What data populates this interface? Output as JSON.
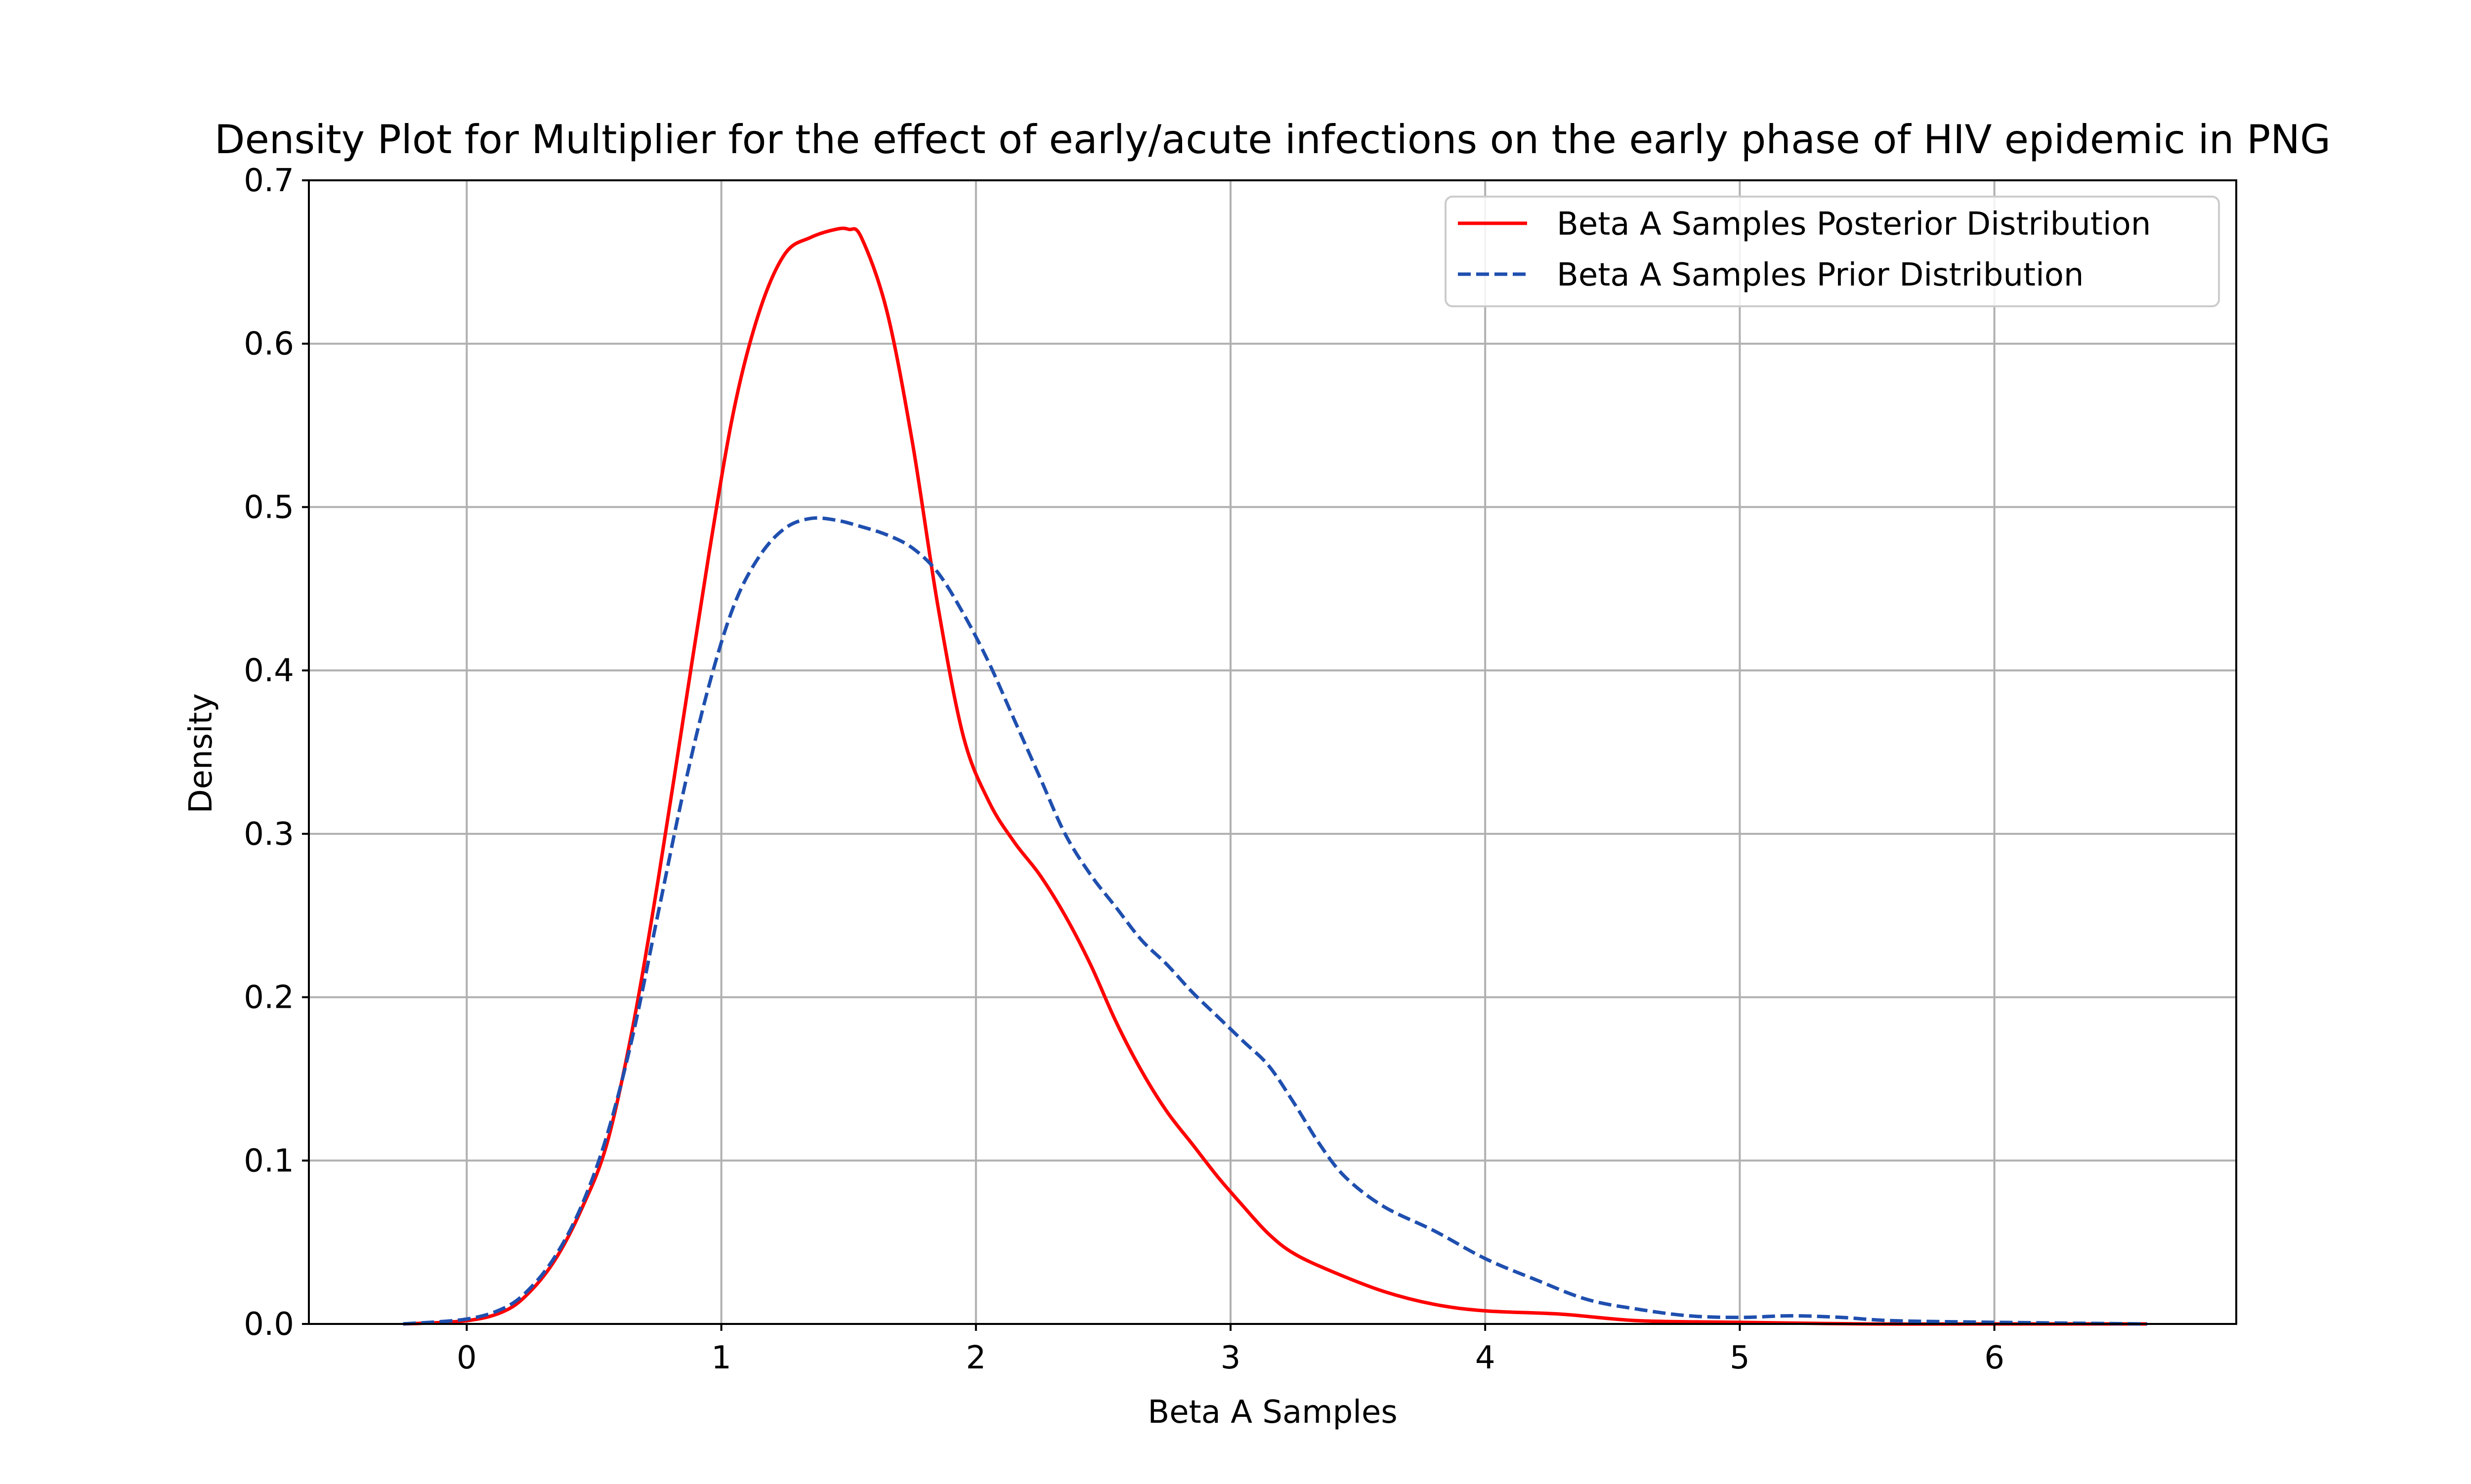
{
  "chart_data": {
    "type": "line",
    "title": "Density Plot for Multiplier for the effect of early/acute infections on the early phase of HIV epidemic in PNG",
    "xlabel": "Beta A Samples",
    "ylabel": "Density",
    "xlim": [
      -0.62,
      6.95
    ],
    "ylim": [
      0,
      0.7
    ],
    "xticks": [
      0,
      1,
      2,
      3,
      4,
      5,
      6
    ],
    "xtick_labels": [
      "0",
      "1",
      "2",
      "3",
      "4",
      "5",
      "6"
    ],
    "yticks": [
      0.0,
      0.1,
      0.2,
      0.3,
      0.4,
      0.5,
      0.6,
      0.7
    ],
    "ytick_labels": [
      "0.0",
      "0.1",
      "0.2",
      "0.3",
      "0.4",
      "0.5",
      "0.6",
      "0.7"
    ],
    "grid": true,
    "legend_position": "top-right",
    "series": [
      {
        "name": "Beta A Samples Posterior Distribution",
        "color": "#ff0000",
        "style": "solid",
        "x": [
          -0.25,
          0.0,
          0.15,
          0.25,
          0.35,
          0.45,
          0.55,
          0.65,
          0.75,
          0.85,
          0.95,
          1.05,
          1.15,
          1.25,
          1.35,
          1.45,
          1.5,
          1.55,
          1.65,
          1.75,
          1.85,
          1.95,
          2.05,
          2.15,
          2.25,
          2.35,
          2.45,
          2.55,
          2.65,
          2.75,
          2.85,
          2.95,
          3.05,
          3.15,
          3.25,
          3.4,
          3.6,
          3.8,
          4.0,
          4.3,
          4.6,
          5.0,
          5.5,
          6.0,
          6.6
        ],
        "y": [
          0.0,
          0.002,
          0.008,
          0.02,
          0.04,
          0.07,
          0.11,
          0.18,
          0.27,
          0.37,
          0.47,
          0.56,
          0.62,
          0.655,
          0.665,
          0.67,
          0.67,
          0.665,
          0.62,
          0.54,
          0.44,
          0.36,
          0.32,
          0.295,
          0.275,
          0.25,
          0.22,
          0.185,
          0.155,
          0.13,
          0.11,
          0.09,
          0.072,
          0.055,
          0.043,
          0.032,
          0.02,
          0.012,
          0.008,
          0.006,
          0.002,
          0.001,
          0.0,
          0.0,
          0.0
        ]
      },
      {
        "name": "Beta A Samples Prior Distribution",
        "color": "#1f4faf",
        "style": "dashed",
        "x": [
          -0.25,
          0.0,
          0.15,
          0.25,
          0.35,
          0.45,
          0.55,
          0.65,
          0.75,
          0.85,
          0.95,
          1.05,
          1.15,
          1.25,
          1.35,
          1.45,
          1.55,
          1.65,
          1.75,
          1.85,
          1.95,
          2.05,
          2.15,
          2.25,
          2.35,
          2.45,
          2.55,
          2.65,
          2.75,
          2.85,
          2.95,
          3.05,
          3.15,
          3.25,
          3.35,
          3.45,
          3.6,
          3.8,
          4.0,
          4.2,
          4.4,
          4.6,
          4.8,
          5.0,
          5.2,
          5.4,
          5.6,
          6.0,
          6.6
        ],
        "y": [
          0.0,
          0.003,
          0.01,
          0.022,
          0.042,
          0.072,
          0.115,
          0.175,
          0.25,
          0.325,
          0.39,
          0.44,
          0.47,
          0.487,
          0.493,
          0.492,
          0.488,
          0.483,
          0.475,
          0.46,
          0.435,
          0.405,
          0.37,
          0.335,
          0.3,
          0.275,
          0.255,
          0.235,
          0.22,
          0.203,
          0.188,
          0.173,
          0.158,
          0.135,
          0.11,
          0.09,
          0.072,
          0.057,
          0.04,
          0.027,
          0.015,
          0.009,
          0.005,
          0.004,
          0.005,
          0.004,
          0.002,
          0.001,
          0.0
        ]
      }
    ]
  }
}
